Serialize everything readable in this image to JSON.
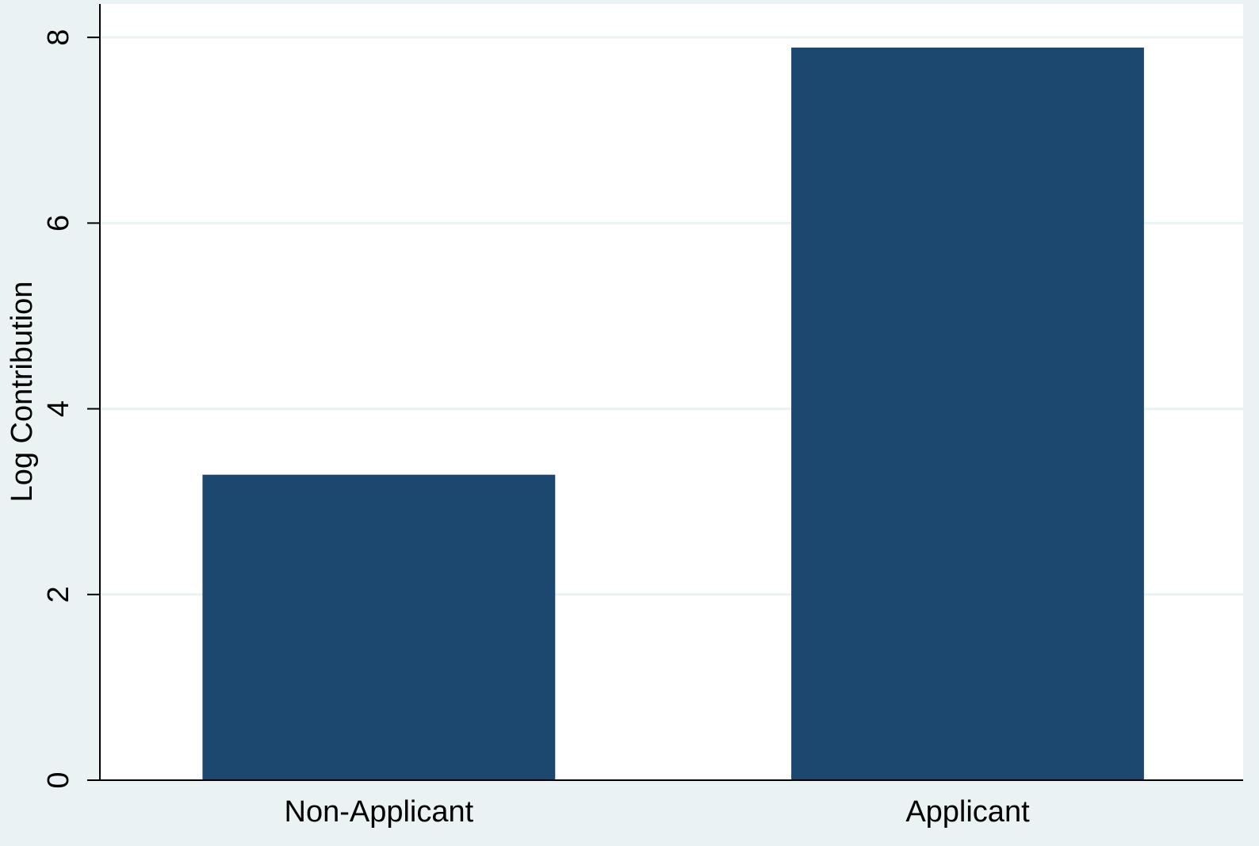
{
  "chart_data": {
    "type": "bar",
    "y_label": "Log Contribution",
    "categories": [
      "Non-Applicant",
      "Applicant"
    ],
    "values": [
      3.29,
      7.89
    ],
    "color": "#1c4870",
    "ylim": [
      0,
      8.36
    ],
    "yticks": [
      0,
      2,
      4,
      6,
      8
    ],
    "grid": true
  }
}
